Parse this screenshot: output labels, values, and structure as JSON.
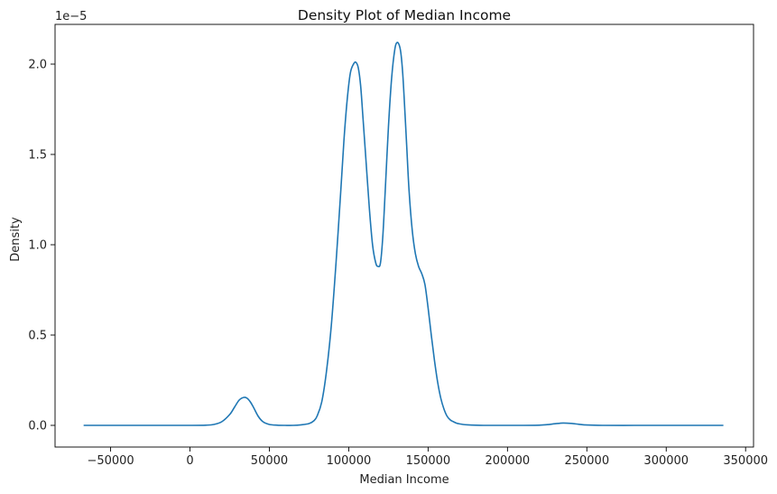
{
  "chart_data": {
    "type": "line",
    "title": "Density Plot of Median Income",
    "xlabel": "Median Income",
    "ylabel": "Density",
    "y_offset_label": "1e−5",
    "y_scale_factor": 1e-05,
    "xlim": [
      -85000,
      355000
    ],
    "ylim": [
      -0.12,
      2.22
    ],
    "x_ticks": [
      -50000,
      0,
      50000,
      100000,
      150000,
      200000,
      250000,
      300000,
      350000
    ],
    "x_tick_labels": [
      "−50000",
      "0",
      "50000",
      "100000",
      "150000",
      "200000",
      "250000",
      "300000",
      "350000"
    ],
    "y_ticks": [
      0.0,
      0.5,
      1.0,
      1.5,
      2.0
    ],
    "y_tick_labels": [
      "0.0",
      "0.5",
      "1.0",
      "1.5",
      "2.0"
    ],
    "grid": false,
    "series": [
      {
        "color": "#1f77b4",
        "x": [
          -67000,
          -40000,
          -20000,
          0,
          10000,
          15000,
          20000,
          25000,
          28000,
          31000,
          34000,
          36000,
          38000,
          40000,
          43000,
          46000,
          50000,
          55000,
          60000,
          65000,
          70000,
          75000,
          78000,
          80000,
          83000,
          86000,
          89000,
          92000,
          95000,
          97000,
          99000,
          101000,
          103000,
          104500,
          106000,
          107500,
          109000,
          111000,
          113000,
          115000,
          117000,
          118500,
          120000,
          121500,
          123000,
          125000,
          127000,
          129000,
          130500,
          132000,
          133000,
          134000,
          135000,
          136500,
          138000,
          140000,
          142000,
          144000,
          146000,
          148000,
          150000,
          152000,
          154000,
          156000,
          158000,
          160000,
          162000,
          164000,
          166000,
          168000,
          170000,
          172000,
          175000,
          180000,
          185000,
          190000,
          200000,
          210000,
          220000,
          225000,
          230000,
          235000,
          240000,
          245000,
          250000,
          260000,
          280000,
          300000,
          320000,
          336000
        ],
        "y": [
          0.0,
          0.0,
          0.0,
          0.0,
          0.001,
          0.005,
          0.02,
          0.06,
          0.1,
          0.14,
          0.155,
          0.15,
          0.13,
          0.1,
          0.05,
          0.02,
          0.005,
          0.001,
          0.0,
          0.0,
          0.003,
          0.01,
          0.025,
          0.05,
          0.13,
          0.3,
          0.55,
          0.9,
          1.3,
          1.58,
          1.8,
          1.95,
          2.0,
          2.01,
          1.98,
          1.88,
          1.7,
          1.45,
          1.2,
          1.0,
          0.9,
          0.88,
          0.9,
          1.05,
          1.3,
          1.65,
          1.92,
          2.08,
          2.12,
          2.1,
          2.05,
          1.95,
          1.8,
          1.55,
          1.3,
          1.08,
          0.95,
          0.88,
          0.84,
          0.78,
          0.65,
          0.5,
          0.36,
          0.24,
          0.15,
          0.09,
          0.05,
          0.03,
          0.02,
          0.012,
          0.008,
          0.005,
          0.003,
          0.001,
          0.0,
          0.0,
          0.0,
          0.0,
          0.001,
          0.004,
          0.009,
          0.013,
          0.011,
          0.006,
          0.002,
          0.0,
          0.0,
          0.0,
          0.0,
          0.0
        ]
      }
    ]
  }
}
